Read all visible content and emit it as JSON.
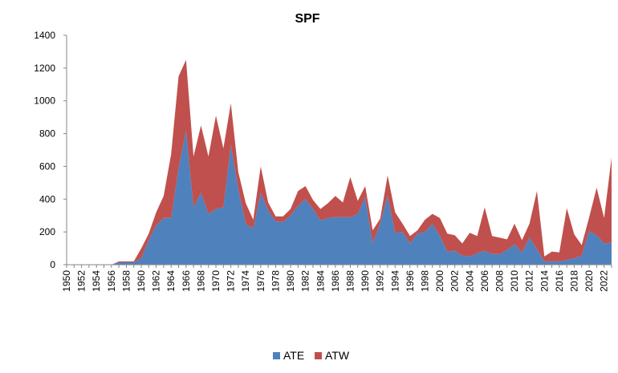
{
  "chart_data": {
    "type": "area",
    "stacked": true,
    "title": "SPF",
    "xlabel": "",
    "ylabel": "",
    "ylim": [
      0,
      1400
    ],
    "yticks": [
      0,
      200,
      400,
      600,
      800,
      1000,
      1200,
      1400
    ],
    "x": [
      1950,
      1951,
      1952,
      1953,
      1954,
      1955,
      1956,
      1957,
      1958,
      1959,
      1960,
      1961,
      1962,
      1963,
      1964,
      1965,
      1966,
      1967,
      1968,
      1969,
      1970,
      1971,
      1972,
      1973,
      1974,
      1975,
      1976,
      1977,
      1978,
      1979,
      1980,
      1981,
      1982,
      1983,
      1984,
      1985,
      1986,
      1987,
      1988,
      1989,
      1990,
      1991,
      1992,
      1993,
      1994,
      1995,
      1996,
      1997,
      1998,
      1999,
      2000,
      2001,
      2002,
      2003,
      2004,
      2005,
      2006,
      2007,
      2008,
      2009,
      2010,
      2011,
      2012,
      2013,
      2014,
      2015,
      2016,
      2017,
      2018,
      2019,
      2020,
      2021,
      2022,
      2023
    ],
    "xtick_labels": [
      "1950",
      "1952",
      "1954",
      "1956",
      "1958",
      "1960",
      "1962",
      "1964",
      "1966",
      "1968",
      "1970",
      "1972",
      "1974",
      "1976",
      "1978",
      "1980",
      "1982",
      "1984",
      "1986",
      "1988",
      "1990",
      "1992",
      "1994",
      "1996",
      "1998",
      "2000",
      "2002",
      "2004",
      "2006",
      "2008",
      "2010",
      "2012",
      "2014",
      "2016",
      "2018",
      "2020",
      "2022"
    ],
    "series": [
      {
        "name": "ATE",
        "color": "#4f81bd",
        "values": [
          0,
          0,
          0,
          0,
          0,
          0,
          0,
          15,
          15,
          15,
          40,
          150,
          240,
          285,
          285,
          590,
          820,
          350,
          440,
          310,
          340,
          350,
          730,
          460,
          250,
          220,
          440,
          330,
          265,
          260,
          300,
          360,
          400,
          340,
          270,
          285,
          290,
          290,
          290,
          310,
          410,
          130,
          250,
          420,
          195,
          200,
          130,
          190,
          200,
          250,
          175,
          80,
          85,
          55,
          50,
          70,
          85,
          65,
          65,
          90,
          125,
          75,
          165,
          95,
          20,
          20,
          20,
          30,
          40,
          55,
          205,
          180,
          130,
          135
        ]
      },
      {
        "name": "ATW",
        "color": "#c0504d",
        "values": [
          0,
          0,
          0,
          0,
          0,
          0,
          0,
          5,
          5,
          5,
          60,
          40,
          80,
          135,
          390,
          560,
          430,
          310,
          410,
          350,
          570,
          360,
          255,
          105,
          125,
          55,
          160,
          50,
          30,
          35,
          40,
          90,
          80,
          55,
          70,
          90,
          130,
          90,
          245,
          80,
          70,
          80,
          30,
          125,
          125,
          50,
          45,
          20,
          75,
          60,
          110,
          110,
          95,
          75,
          145,
          105,
          265,
          110,
          100,
          65,
          125,
          75,
          85,
          355,
          30,
          60,
          55,
          315,
          145,
          65,
          85,
          290,
          155,
          520
        ]
      }
    ]
  }
}
